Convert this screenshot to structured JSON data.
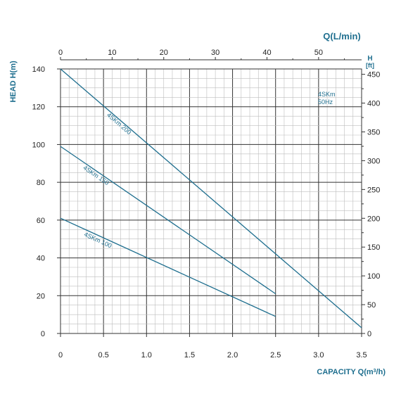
{
  "chart_data": {
    "type": "line",
    "model_label": "4SKm",
    "frequency_label": "50Hz",
    "x_bottom": {
      "label_main": "CAPACITY Q(m",
      "label_sup": "3",
      "label_end": "/h)",
      "range": [
        0,
        3.5
      ],
      "ticks": [
        "0",
        "0.5",
        "1.0",
        "1.5",
        "2.0",
        "2.5",
        "3.0",
        "3.5"
      ]
    },
    "x_top": {
      "label": "Q(L/min)",
      "ticks": [
        "0",
        "10",
        "20",
        "30",
        "40",
        "50"
      ]
    },
    "y_left": {
      "label": "HEAD H(m)",
      "range": [
        0,
        140
      ],
      "ticks": [
        "0",
        "20",
        "40",
        "60",
        "80",
        "100",
        "120",
        "140"
      ]
    },
    "y_right": {
      "label_h": "H",
      "label_unit": "[ft]",
      "ticks": [
        "0",
        "50",
        "100",
        "150",
        "200",
        "250",
        "300",
        "350",
        "400",
        "450"
      ]
    },
    "grid": true,
    "color": "#1f6f8f",
    "series": [
      {
        "name": "4SKm 200",
        "x": [
          0,
          3.5
        ],
        "y": [
          140,
          3
        ]
      },
      {
        "name": "4SKm 150",
        "x": [
          0,
          2.5
        ],
        "y": [
          99,
          21
        ]
      },
      {
        "name": "4SKm 100",
        "x": [
          0,
          2.5
        ],
        "y": [
          61,
          9
        ]
      }
    ]
  }
}
